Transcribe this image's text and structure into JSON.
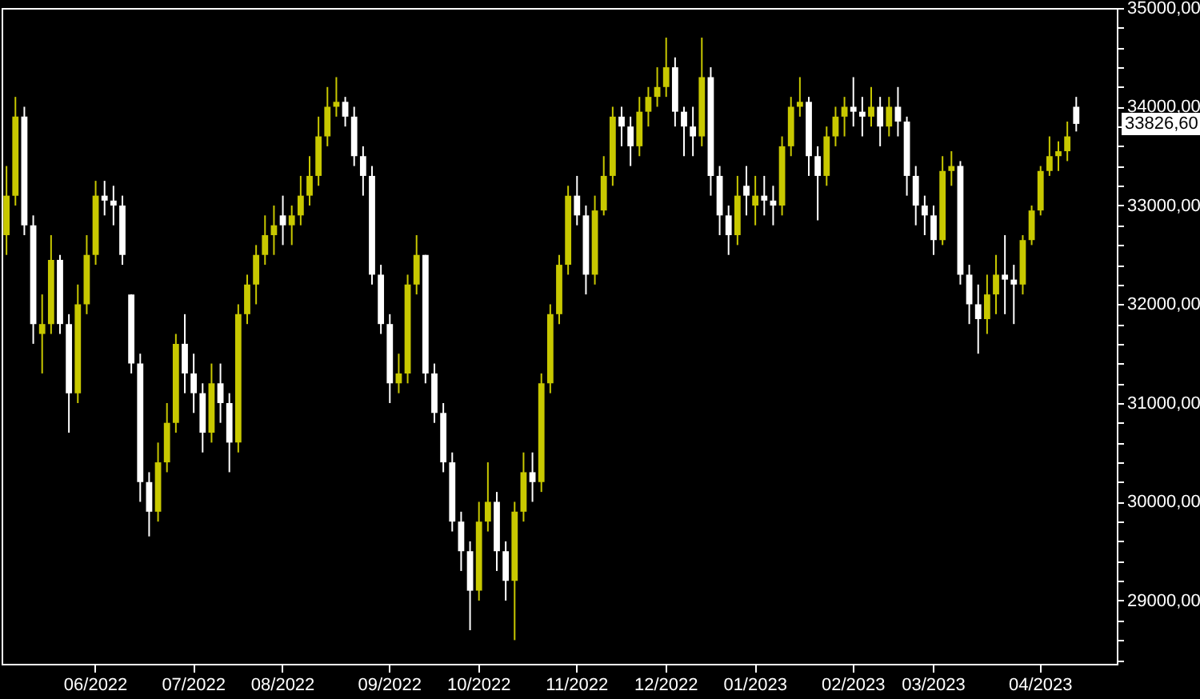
{
  "chart_data": {
    "type": "candlestick",
    "categories": [
      null,
      null,
      null,
      null,
      null,
      null,
      null,
      null,
      null,
      null,
      "06/2022",
      null,
      null,
      null,
      null,
      null,
      null,
      null,
      null,
      null,
      null,
      "07/2022",
      null,
      null,
      null,
      null,
      null,
      null,
      null,
      null,
      null,
      "08/2022",
      null,
      null,
      null,
      null,
      null,
      null,
      null,
      null,
      null,
      null,
      null,
      "09/2022",
      null,
      null,
      null,
      null,
      null,
      null,
      null,
      null,
      null,
      "10/2022",
      null,
      null,
      null,
      null,
      null,
      null,
      null,
      null,
      null,
      null,
      "11/2022",
      null,
      null,
      null,
      null,
      null,
      null,
      null,
      null,
      null,
      "12/2022",
      null,
      null,
      null,
      null,
      null,
      null,
      null,
      null,
      null,
      "01/2023",
      null,
      null,
      null,
      null,
      null,
      null,
      null,
      null,
      null,
      null,
      "02/2023",
      null,
      null,
      null,
      null,
      null,
      null,
      null,
      null,
      "03/2023",
      null,
      null,
      null,
      null,
      null,
      null,
      null,
      null,
      null,
      null,
      null,
      "04/2023",
      null,
      null,
      null,
      null,
      null,
      null,
      null,
      null
    ],
    "ohlc": [
      [
        32700,
        33400,
        32500,
        33100
      ],
      [
        33100,
        34100,
        33000,
        33900
      ],
      [
        33900,
        34000,
        32700,
        32800
      ],
      [
        32800,
        32900,
        31600,
        31800
      ],
      [
        31700,
        32100,
        31300,
        31800
      ],
      [
        31800,
        32700,
        31700,
        32450
      ],
      [
        32450,
        32500,
        31700,
        31800
      ],
      [
        31800,
        31900,
        30700,
        31100
      ],
      [
        31100,
        32200,
        31000,
        32000
      ],
      [
        32000,
        32700,
        31900,
        32500
      ],
      [
        32500,
        33250,
        32400,
        33100
      ],
      [
        33100,
        33250,
        32900,
        33050
      ],
      [
        33050,
        33200,
        32800,
        33000
      ],
      [
        33000,
        33100,
        32400,
        32500
      ],
      [
        32100,
        32100,
        31300,
        31400
      ],
      [
        31400,
        31500,
        30000,
        30200
      ],
      [
        30200,
        30300,
        29650,
        29900
      ],
      [
        29900,
        30600,
        29800,
        30400
      ],
      [
        30400,
        31000,
        30300,
        30800
      ],
      [
        30800,
        31700,
        30700,
        31600
      ],
      [
        31600,
        31900,
        31100,
        31300
      ],
      [
        31300,
        31500,
        30900,
        31100
      ],
      [
        31100,
        31200,
        30500,
        30700
      ],
      [
        30700,
        31400,
        30600,
        31200
      ],
      [
        31200,
        31400,
        30800,
        31000
      ],
      [
        31000,
        31100,
        30300,
        30600
      ],
      [
        30600,
        32000,
        30500,
        31900
      ],
      [
        31900,
        32300,
        31800,
        32200
      ],
      [
        32200,
        32600,
        32000,
        32500
      ],
      [
        32500,
        32900,
        32400,
        32700
      ],
      [
        32700,
        33000,
        32500,
        32800
      ],
      [
        32900,
        33100,
        32600,
        32800
      ],
      [
        32800,
        33000,
        32600,
        32900
      ],
      [
        32900,
        33300,
        32800,
        33100
      ],
      [
        33100,
        33500,
        33000,
        33300
      ],
      [
        33300,
        33900,
        33200,
        33700
      ],
      [
        33700,
        34200,
        33600,
        34000
      ],
      [
        34000,
        34300,
        33900,
        34050
      ],
      [
        34050,
        34100,
        33800,
        33900
      ],
      [
        33900,
        34000,
        33400,
        33500
      ],
      [
        33500,
        33600,
        33100,
        33300
      ],
      [
        33300,
        33400,
        32200,
        32300
      ],
      [
        32300,
        32400,
        31700,
        31800
      ],
      [
        31800,
        31900,
        31000,
        31200
      ],
      [
        31200,
        31500,
        31100,
        31300
      ],
      [
        31300,
        32300,
        31200,
        32200
      ],
      [
        32200,
        32700,
        32100,
        32500
      ],
      [
        32500,
        32500,
        31200,
        31300
      ],
      [
        31300,
        31400,
        30800,
        30900
      ],
      [
        30900,
        31000,
        30300,
        30400
      ],
      [
        30400,
        30500,
        29700,
        29800
      ],
      [
        29800,
        29900,
        29300,
        29500
      ],
      [
        29500,
        29600,
        28700,
        29100
      ],
      [
        29100,
        30000,
        29000,
        29800
      ],
      [
        29800,
        30400,
        29700,
        30000
      ],
      [
        30000,
        30100,
        29300,
        29500
      ],
      [
        29500,
        29600,
        29000,
        29200
      ],
      [
        29200,
        30000,
        28600,
        29900
      ],
      [
        29900,
        30500,
        29800,
        30300
      ],
      [
        30300,
        30500,
        30000,
        30200
      ],
      [
        30200,
        31300,
        30100,
        31200
      ],
      [
        31200,
        32000,
        31100,
        31900
      ],
      [
        31900,
        32500,
        31800,
        32400
      ],
      [
        32400,
        33200,
        32300,
        33100
      ],
      [
        33100,
        33300,
        32800,
        32900
      ],
      [
        32900,
        33000,
        32100,
        32300
      ],
      [
        32300,
        33100,
        32200,
        32950
      ],
      [
        32950,
        33500,
        32900,
        33300
      ],
      [
        33300,
        34000,
        33200,
        33900
      ],
      [
        33900,
        34000,
        33600,
        33800
      ],
      [
        33800,
        33900,
        33400,
        33600
      ],
      [
        33600,
        34100,
        33500,
        33950
      ],
      [
        33950,
        34200,
        33800,
        34100
      ],
      [
        34100,
        34400,
        34000,
        34200
      ],
      [
        34200,
        34700,
        34100,
        34400
      ],
      [
        34400,
        34500,
        33800,
        33950
      ],
      [
        33950,
        34000,
        33500,
        33800
      ],
      [
        33800,
        34000,
        33500,
        33700
      ],
      [
        33700,
        34700,
        33600,
        34300
      ],
      [
        34300,
        34400,
        33100,
        33300
      ],
      [
        33300,
        33400,
        32700,
        32900
      ],
      [
        32900,
        33000,
        32500,
        32700
      ],
      [
        32700,
        33300,
        32600,
        33100
      ],
      [
        33200,
        33400,
        32900,
        33100
      ],
      [
        33000,
        33300,
        32800,
        33100
      ],
      [
        33100,
        33300,
        32900,
        33050
      ],
      [
        33050,
        33200,
        32800,
        33000
      ],
      [
        33000,
        33700,
        32900,
        33600
      ],
      [
        33600,
        34100,
        33500,
        34000
      ],
      [
        34000,
        34300,
        33900,
        34050
      ],
      [
        34050,
        34100,
        33300,
        33500
      ],
      [
        33500,
        33600,
        32850,
        33300
      ],
      [
        33300,
        33800,
        33200,
        33700
      ],
      [
        33700,
        34000,
        33600,
        33900
      ],
      [
        33900,
        34100,
        33700,
        34000
      ],
      [
        34000,
        34300,
        33800,
        33950
      ],
      [
        33950,
        34100,
        33700,
        33900
      ],
      [
        33900,
        34200,
        33800,
        34000
      ],
      [
        34000,
        34100,
        33600,
        33800
      ],
      [
        33800,
        34100,
        33700,
        34000
      ],
      [
        34000,
        34200,
        33700,
        33850
      ],
      [
        33850,
        33900,
        33100,
        33300
      ],
      [
        33300,
        33400,
        32800,
        33000
      ],
      [
        33000,
        33100,
        32700,
        32900
      ],
      [
        32900,
        33000,
        32500,
        32650
      ],
      [
        32650,
        33500,
        32600,
        33350
      ],
      [
        33350,
        33550,
        33200,
        33400
      ],
      [
        33400,
        33450,
        32200,
        32300
      ],
      [
        32300,
        32400,
        31800,
        32000
      ],
      [
        32000,
        32200,
        31500,
        31850
      ],
      [
        31850,
        32300,
        31700,
        32100
      ],
      [
        32100,
        32500,
        31900,
        32300
      ],
      [
        32300,
        32700,
        31900,
        32250
      ],
      [
        32250,
        32400,
        31800,
        32200
      ],
      [
        32200,
        32700,
        32100,
        32650
      ],
      [
        32650,
        33000,
        32600,
        32950
      ],
      [
        32950,
        33400,
        32900,
        33350
      ],
      [
        33350,
        33700,
        33300,
        33500
      ],
      [
        33500,
        33650,
        33350,
        33550
      ],
      [
        33550,
        33850,
        33450,
        33700
      ],
      [
        34000,
        34100,
        33750,
        33826.6
      ],
      null,
      null,
      null,
      null
    ],
    "colors": [
      "#c8c800",
      "#c8c800",
      "#ffffff",
      "#ffffff",
      "#c8c800",
      "#c8c800",
      "#ffffff",
      "#ffffff",
      "#c8c800",
      "#c8c800",
      "#c8c800",
      "#ffffff",
      "#ffffff",
      "#ffffff",
      "#ffffff",
      "#ffffff",
      "#ffffff",
      "#c8c800",
      "#c8c800",
      "#c8c800",
      "#ffffff",
      "#ffffff",
      "#ffffff",
      "#c8c800",
      "#ffffff",
      "#ffffff",
      "#c8c800",
      "#c8c800",
      "#c8c800",
      "#c8c800",
      "#c8c800",
      "#ffffff",
      "#c8c800",
      "#c8c800",
      "#c8c800",
      "#c8c800",
      "#c8c800",
      "#c8c800",
      "#ffffff",
      "#ffffff",
      "#ffffff",
      "#ffffff",
      "#ffffff",
      "#ffffff",
      "#c8c800",
      "#c8c800",
      "#c8c800",
      "#ffffff",
      "#ffffff",
      "#ffffff",
      "#ffffff",
      "#ffffff",
      "#ffffff",
      "#c8c800",
      "#c8c800",
      "#ffffff",
      "#ffffff",
      "#c8c800",
      "#c8c800",
      "#ffffff",
      "#c8c800",
      "#c8c800",
      "#c8c800",
      "#c8c800",
      "#ffffff",
      "#ffffff",
      "#c8c800",
      "#c8c800",
      "#c8c800",
      "#ffffff",
      "#ffffff",
      "#c8c800",
      "#c8c800",
      "#c8c800",
      "#c8c800",
      "#ffffff",
      "#ffffff",
      "#ffffff",
      "#c8c800",
      "#ffffff",
      "#ffffff",
      "#ffffff",
      "#c8c800",
      "#ffffff",
      "#c8c800",
      "#ffffff",
      "#ffffff",
      "#c8c800",
      "#c8c800",
      "#c8c800",
      "#ffffff",
      "#ffffff",
      "#c8c800",
      "#c8c800",
      "#c8c800",
      "#ffffff",
      "#ffffff",
      "#c8c800",
      "#ffffff",
      "#c8c800",
      "#ffffff",
      "#ffffff",
      "#ffffff",
      "#ffffff",
      "#ffffff",
      "#c8c800",
      "#c8c800",
      "#ffffff",
      "#ffffff",
      "#ffffff",
      "#c8c800",
      "#c8c800",
      "#ffffff",
      "#ffffff",
      "#c8c800",
      "#c8c800",
      "#c8c800",
      "#c8c800",
      "#c8c800",
      "#c8c800",
      "#ffffff",
      null,
      null,
      null,
      null
    ],
    "ylim": [
      28360,
      35000
    ],
    "yticks": [
      {
        "value": 28400,
        "label": null
      },
      {
        "value": 28600,
        "label": null
      },
      {
        "value": 28800,
        "label": null
      },
      {
        "value": 29000,
        "label": "29000,00"
      },
      {
        "value": 29200,
        "label": null
      },
      {
        "value": 29400,
        "label": null
      },
      {
        "value": 29600,
        "label": null
      },
      {
        "value": 29800,
        "label": null
      },
      {
        "value": 30000,
        "label": "30000,00"
      },
      {
        "value": 30200,
        "label": null
      },
      {
        "value": 30400,
        "label": null
      },
      {
        "value": 30600,
        "label": null
      },
      {
        "value": 30800,
        "label": null
      },
      {
        "value": 31000,
        "label": "31000,00"
      },
      {
        "value": 31200,
        "label": null
      },
      {
        "value": 31400,
        "label": null
      },
      {
        "value": 31600,
        "label": null
      },
      {
        "value": 31800,
        "label": null
      },
      {
        "value": 32000,
        "label": "32000,00"
      },
      {
        "value": 32200,
        "label": null
      },
      {
        "value": 32400,
        "label": null
      },
      {
        "value": 32600,
        "label": null
      },
      {
        "value": 32800,
        "label": null
      },
      {
        "value": 33000,
        "label": "33000,00"
      },
      {
        "value": 33200,
        "label": null
      },
      {
        "value": 33400,
        "label": null
      },
      {
        "value": 33600,
        "label": null
      },
      {
        "value": 33800,
        "label": null
      },
      {
        "value": 34000,
        "label": "34000,00"
      },
      {
        "value": 34200,
        "label": null
      },
      {
        "value": 34400,
        "label": null
      },
      {
        "value": 34600,
        "label": null
      },
      {
        "value": 34800,
        "label": null
      },
      {
        "value": 35000,
        "label": "35000,00"
      }
    ],
    "annotations": [
      "33826,60"
    ]
  }
}
